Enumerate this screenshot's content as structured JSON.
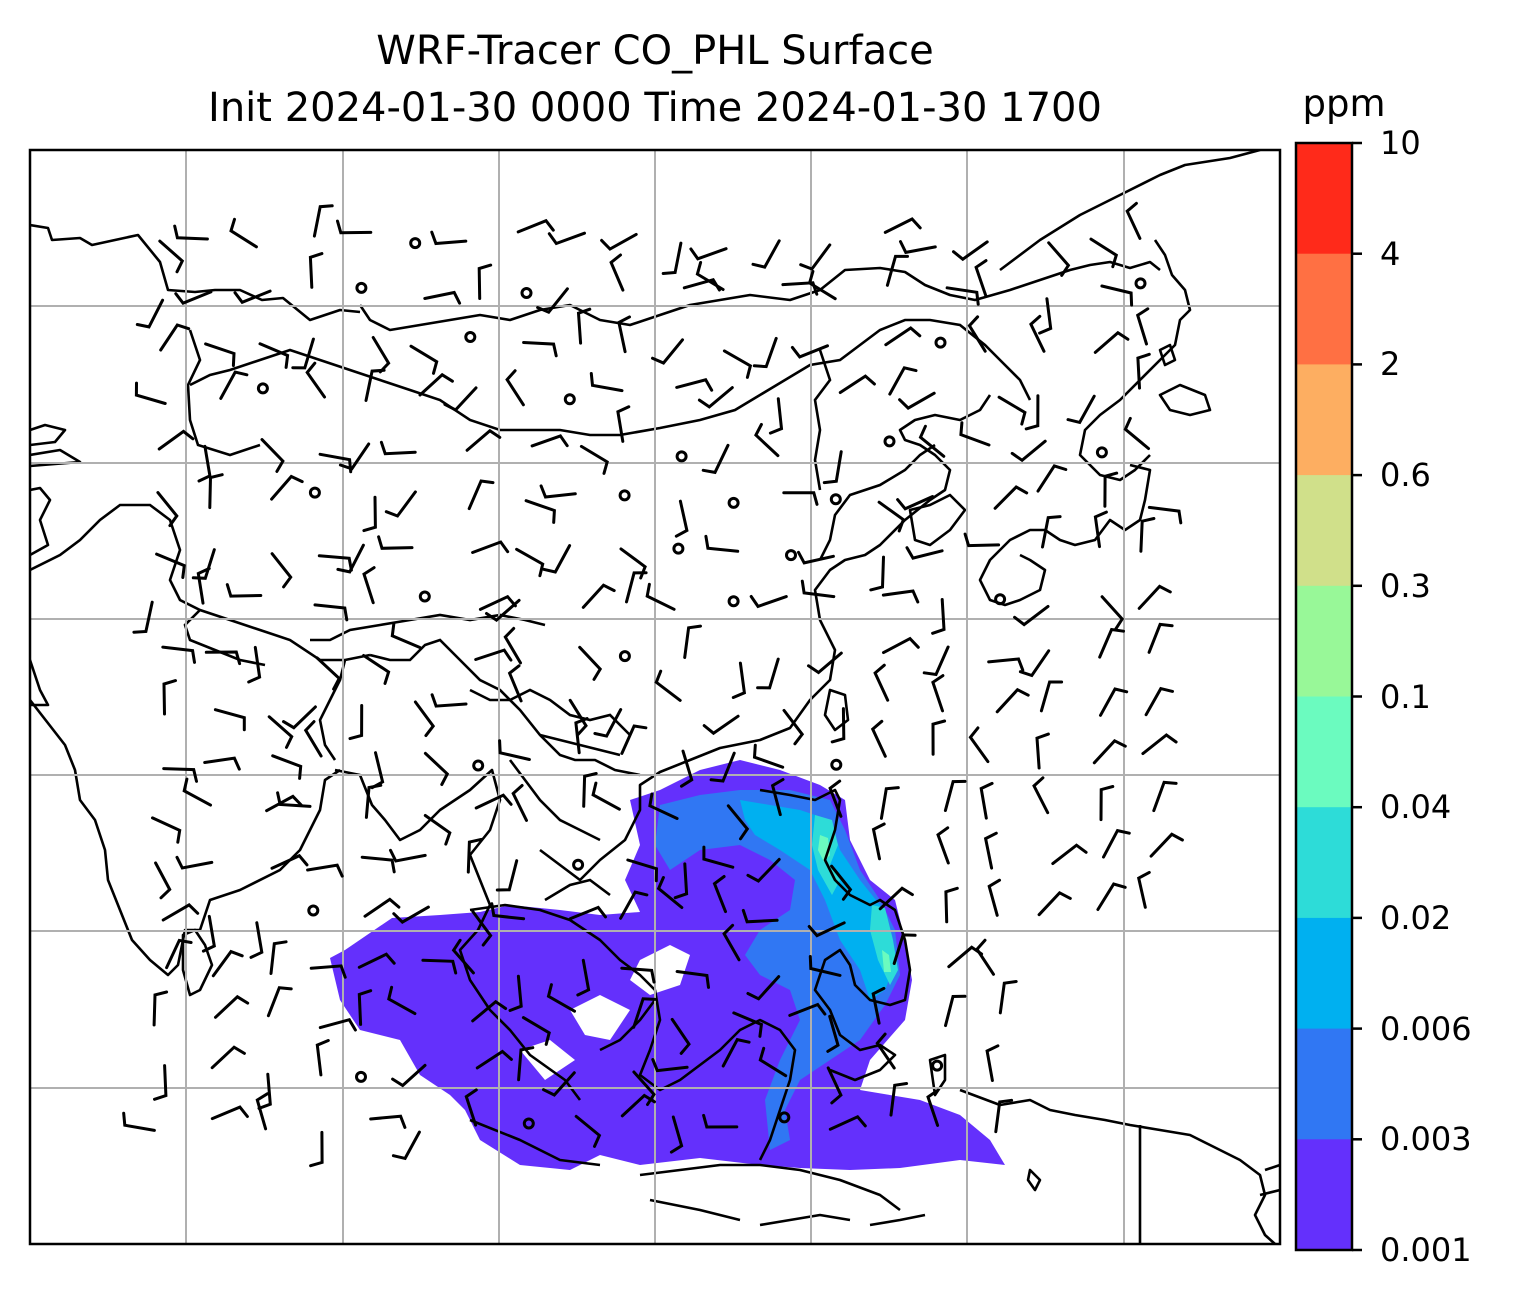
{
  "title": {
    "line1": "WRF-Tracer CO_PHL Surface",
    "line2": "Init 2024-01-30 0000 Time 2024-01-30 1700"
  },
  "colorbar": {
    "unit": "ppm",
    "ticks": [
      "10",
      "4",
      "2",
      "0.6",
      "0.3",
      "0.1",
      "0.04",
      "0.02",
      "0.006",
      "0.003",
      "0.001"
    ],
    "colors": [
      "#ff2a1a",
      "#ff7043",
      "#fdae61",
      "#d0e08a",
      "#98f898",
      "#6bfbbf",
      "#2ddcd8",
      "#00b0f0",
      "#3077f3",
      "#6430fc"
    ]
  },
  "map": {
    "gridlines": true,
    "features": [
      "coastlines",
      "country-borders",
      "wind-barbs",
      "co-tracer-concentration"
    ]
  }
}
